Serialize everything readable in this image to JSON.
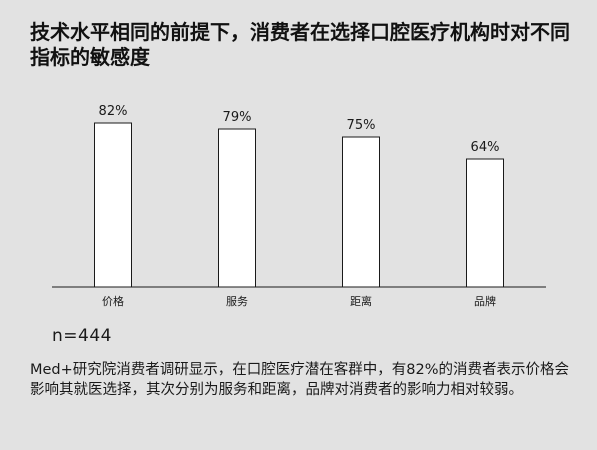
{
  "title": "技术水平相同的前提下，消费者在选择口腔医疗机构时对不同指标的敏感度",
  "sample_size": "n=444",
  "note": "Med+研究院消费者调研显示，在口腔医疗潜在客群中，有82%的消费者表示价格会影响其就医选择，其次分别为服务和距离，品牌对消费者的影响力相对较弱。",
  "chart_data": {
    "type": "bar",
    "categories": [
      "价格",
      "服务",
      "距离",
      "品牌"
    ],
    "values": [
      82,
      79,
      75,
      64
    ],
    "value_labels": [
      "82%",
      "79%",
      "75%",
      "64%"
    ],
    "title": "",
    "xlabel": "",
    "ylabel": "",
    "ylim": [
      0,
      100
    ],
    "grid": false,
    "bar_fill": "#ffffff",
    "bar_stroke": "#1a1a1a"
  }
}
